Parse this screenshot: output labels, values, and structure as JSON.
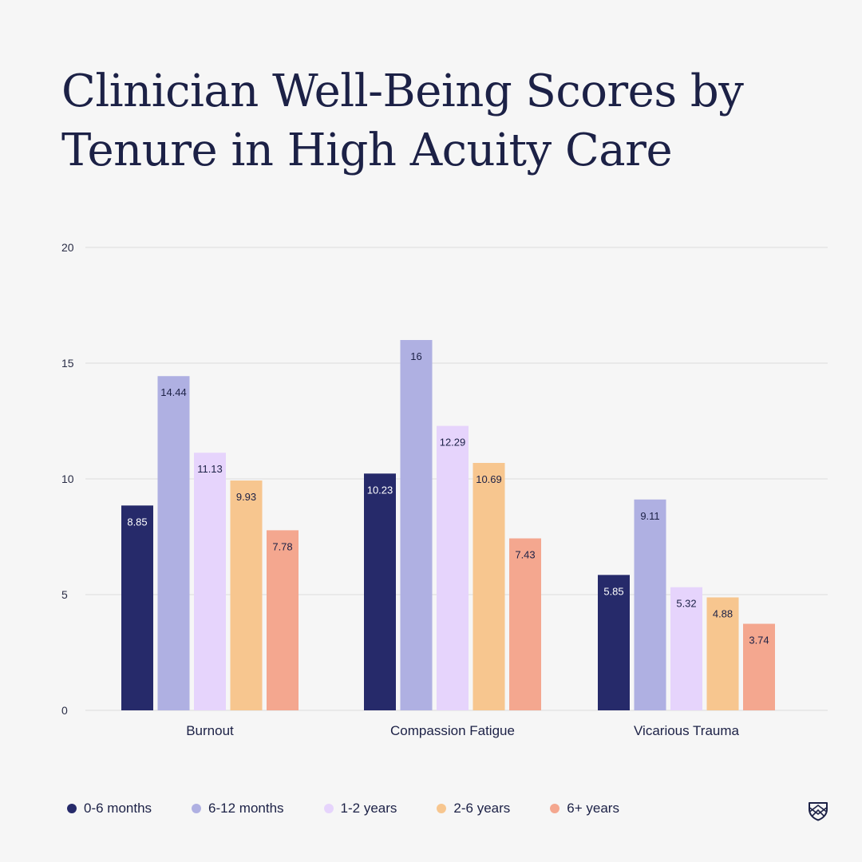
{
  "title": "Clinician Well-Being Scores by Tenure in High Acuity Care",
  "colors": {
    "background": "#f6f6f6",
    "text": "#1c2146",
    "grid": "#dcdcdc"
  },
  "logo_icon": "shield-icon",
  "chart_data": {
    "type": "bar",
    "title": "Clinician Well-Being Scores by Tenure in High Acuity Care",
    "xlabel": "",
    "ylabel": "",
    "ylim": [
      0,
      20
    ],
    "yticks": [
      0,
      5,
      10,
      15,
      20
    ],
    "grid": true,
    "legend_position": "bottom-left",
    "categories": [
      "Burnout",
      "Compassion Fatigue",
      "Vicarious Trauma"
    ],
    "series": [
      {
        "name": "0-6 months",
        "color": "#262a6a",
        "label_color": "#ffffff",
        "values": [
          8.85,
          10.23,
          5.85
        ],
        "labels": [
          "8.85",
          "10.23",
          "5.85"
        ]
      },
      {
        "name": "6-12 months",
        "color": "#afb0e2",
        "label_color": "#1c2146",
        "values": [
          14.44,
          16,
          9.11
        ],
        "labels": [
          "14.44",
          "16",
          "9.11"
        ]
      },
      {
        "name": "1-2 years",
        "color": "#e6d4fc",
        "label_color": "#1c2146",
        "values": [
          11.13,
          12.29,
          5.32
        ],
        "labels": [
          "11.13",
          "12.29",
          "5.32"
        ]
      },
      {
        "name": "2-6 years",
        "color": "#f7c68f",
        "label_color": "#1c2146",
        "values": [
          9.93,
          10.69,
          4.88
        ],
        "labels": [
          "9.93",
          "10.69",
          "4.88"
        ]
      },
      {
        "name": "6+ years",
        "color": "#f4a78f",
        "label_color": "#1c2146",
        "values": [
          7.78,
          7.43,
          3.74
        ],
        "labels": [
          "7.78",
          "7.43",
          "3.74"
        ]
      }
    ]
  }
}
